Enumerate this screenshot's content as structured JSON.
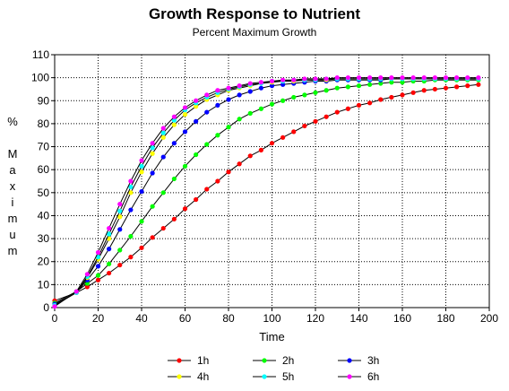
{
  "chart_data": {
    "type": "line",
    "title": "Growth Response to Nutrient",
    "subtitle": "Percent Maximum Growth",
    "xlabel": "Time",
    "ylabel": "% Maximum",
    "xlim": [
      0,
      200
    ],
    "ylim": [
      0,
      110
    ],
    "x_ticks": [
      0,
      20,
      40,
      60,
      80,
      100,
      120,
      140,
      160,
      180,
      200
    ],
    "y_ticks": [
      0,
      10,
      20,
      30,
      40,
      50,
      60,
      70,
      80,
      90,
      100,
      110
    ],
    "grid": true,
    "legend_position": "bottom",
    "x": [
      0,
      10,
      15,
      20,
      25,
      30,
      35,
      40,
      45,
      50,
      55,
      60,
      65,
      70,
      75,
      80,
      85,
      90,
      95,
      100,
      105,
      110,
      115,
      120,
      125,
      130,
      135,
      140,
      145,
      150,
      155,
      160,
      165,
      170,
      175,
      180,
      185,
      190,
      195
    ],
    "series": [
      {
        "name": "1h",
        "color": "#ff0000",
        "values": [
          3,
          6.5,
          9,
          12,
          15,
          18.5,
          22,
          26,
          30.5,
          34.5,
          38.5,
          43,
          47,
          51.5,
          55,
          59,
          62.5,
          66,
          68.5,
          71.5,
          74,
          76.5,
          79,
          81,
          83,
          85,
          86.5,
          88,
          89,
          90.5,
          91.5,
          92.5,
          93.5,
          94.5,
          95,
          95.5,
          96,
          96.5,
          97
        ]
      },
      {
        "name": "2h",
        "color": "#00ff00",
        "values": [
          2,
          7,
          10.5,
          14,
          19,
          25,
          31,
          37.5,
          44,
          50,
          56,
          61.5,
          66.5,
          71,
          75,
          78.5,
          82,
          84.5,
          86.5,
          88.5,
          90,
          91.5,
          92.5,
          93.5,
          94.5,
          95.5,
          96,
          96.5,
          97,
          97.5,
          98,
          98,
          98.5,
          98.5,
          99,
          99,
          99,
          99,
          99
        ]
      },
      {
        "name": "3h",
        "color": "#0000ff",
        "values": [
          1.5,
          6.5,
          12,
          18,
          25.5,
          34,
          42.5,
          50.5,
          58.5,
          65.5,
          71.5,
          76.5,
          81,
          85,
          88,
          90.5,
          92.5,
          94,
          95.5,
          96.5,
          97,
          97.5,
          98,
          98.5,
          98.5,
          99,
          99,
          99,
          99,
          99,
          99.5,
          99.5,
          99.5,
          99.5,
          99.5,
          99.5,
          99.5,
          99.5,
          99.5
        ]
      },
      {
        "name": "4h",
        "color": "#ffff00",
        "values": [
          1,
          6.5,
          13,
          21,
          30,
          39.5,
          50,
          59,
          67,
          74,
          79.5,
          84,
          87.5,
          90.5,
          92.5,
          94.5,
          95.5,
          96.5,
          97.5,
          98,
          98.5,
          98.5,
          99,
          99,
          99,
          99.5,
          99.5,
          99.5,
          99.5,
          99.5,
          99.5,
          99.5,
          99.5,
          99.5,
          99.5,
          99.5,
          99.5,
          99.5,
          99.5
        ]
      },
      {
        "name": "5h",
        "color": "#00ffff",
        "values": [
          1,
          6.5,
          13.5,
          22,
          32,
          42,
          52.5,
          61.5,
          69.5,
          76,
          81.5,
          86,
          89,
          91.5,
          93.5,
          95,
          96,
          97,
          97.5,
          98.5,
          98.5,
          99,
          99,
          99,
          99.5,
          99.5,
          99.5,
          99.5,
          99.5,
          99.5,
          99.5,
          99.5,
          99.5,
          99.5,
          99.5,
          99.5,
          99.5,
          99.5,
          99.5
        ]
      },
      {
        "name": "6h",
        "color": "#ff00ff",
        "values": [
          0.5,
          7,
          14.5,
          24,
          34.5,
          45,
          55,
          64,
          71.5,
          78,
          83,
          87,
          90,
          92.5,
          94.5,
          95.5,
          96.5,
          97.5,
          98,
          98.5,
          99,
          99,
          99.5,
          99.5,
          99.5,
          100,
          100,
          100,
          100,
          100,
          100,
          100,
          100,
          100,
          100,
          100,
          100,
          100,
          100
        ]
      }
    ]
  }
}
